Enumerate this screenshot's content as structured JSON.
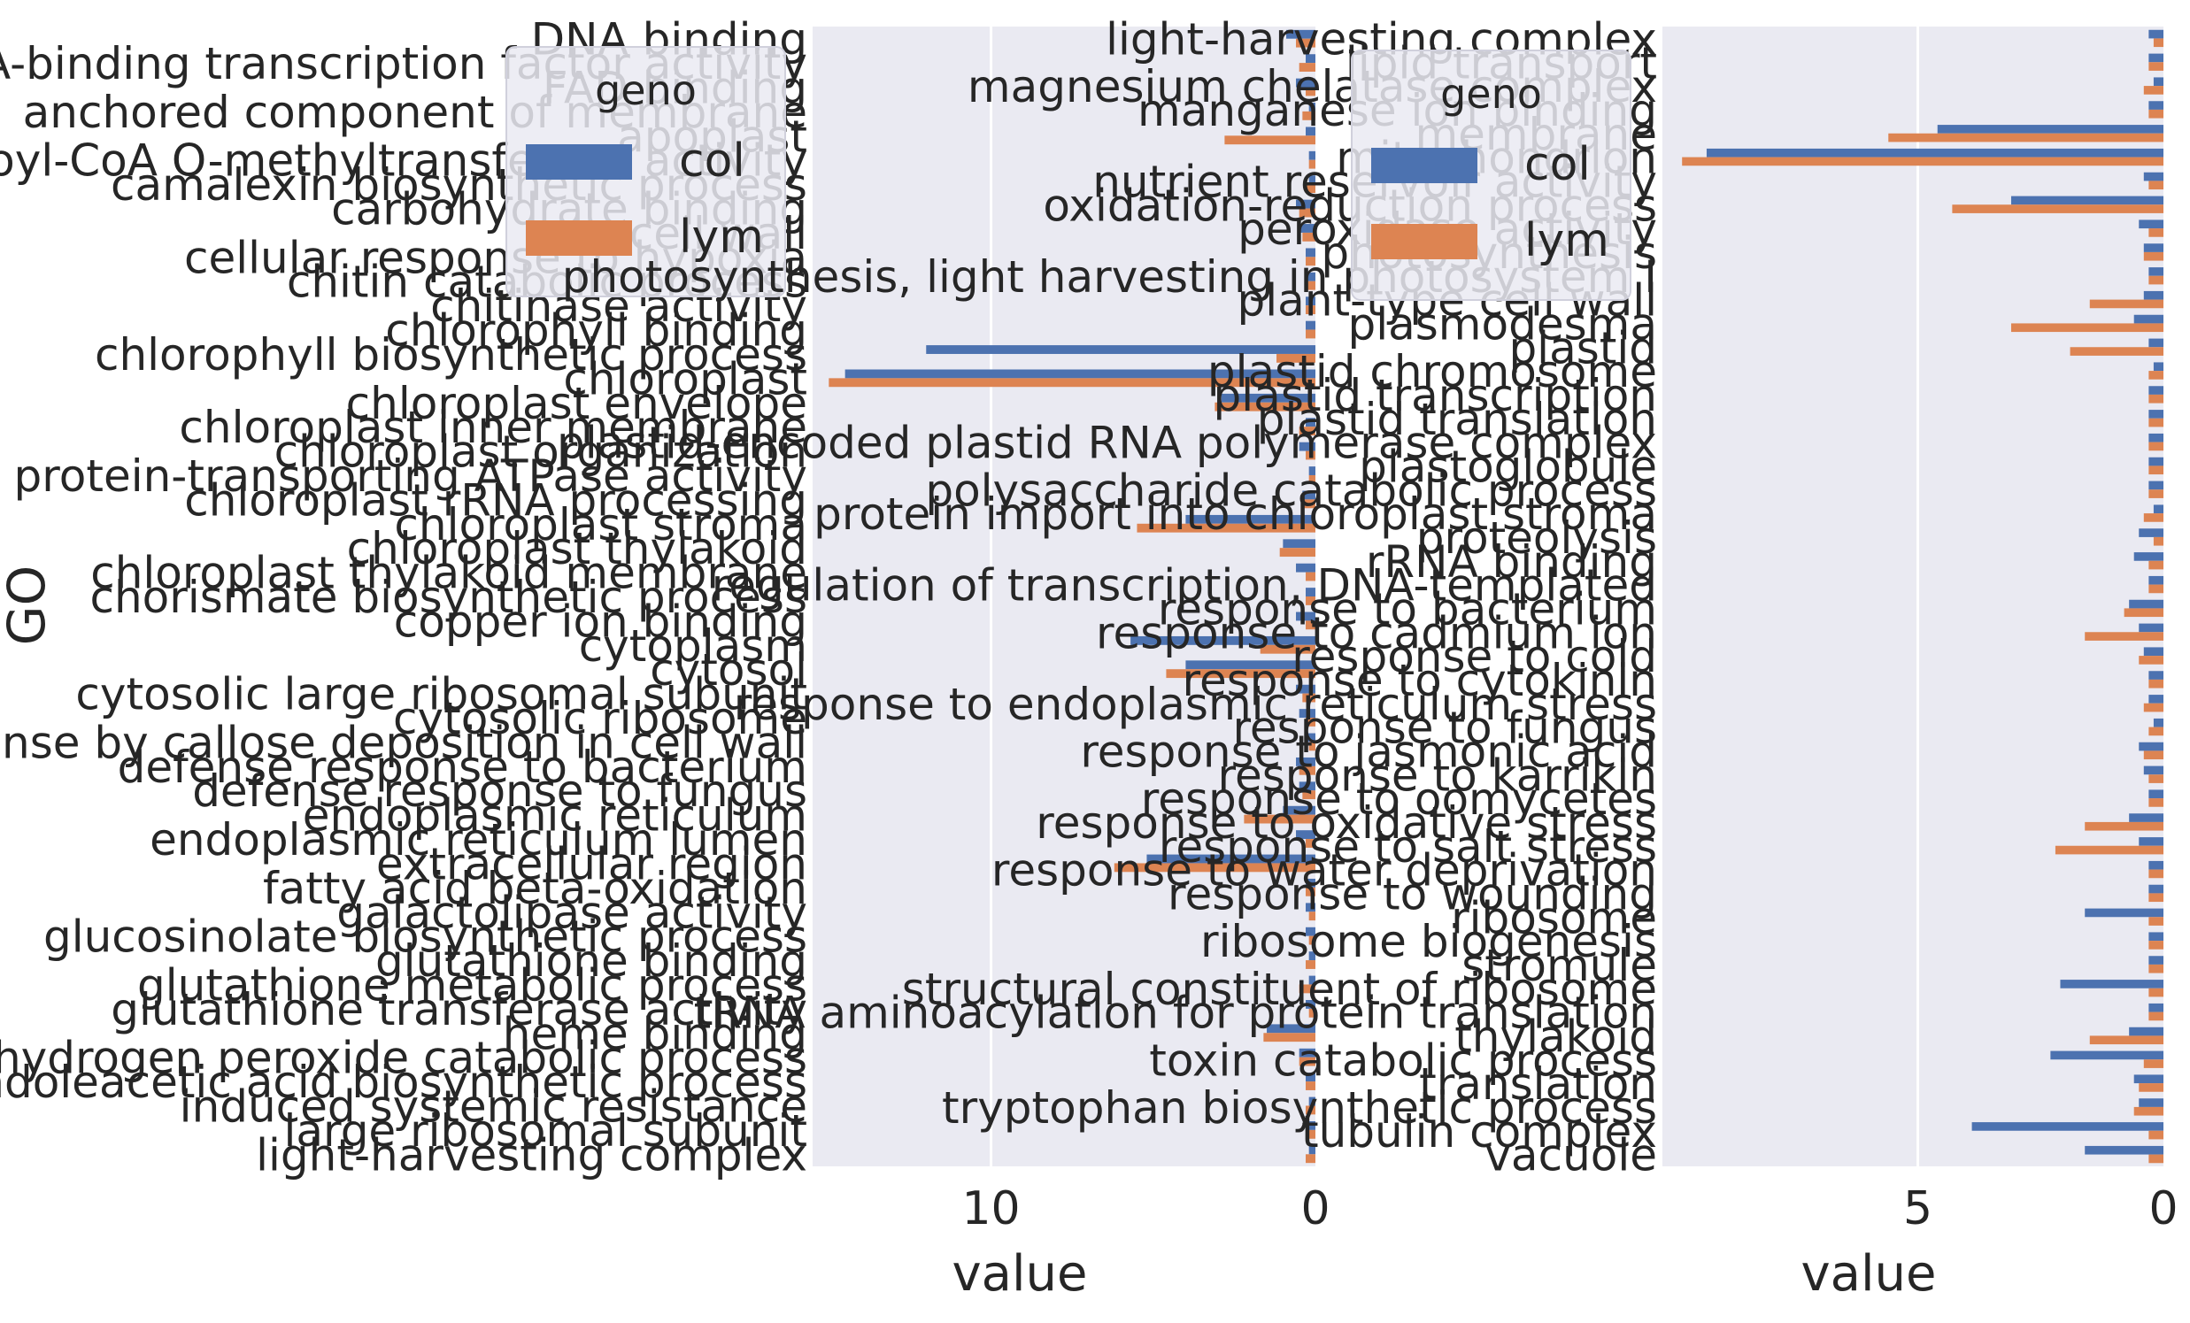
{
  "colors": {
    "background": "#eaeaf2",
    "grid": "#ffffff",
    "col": "#4c72b0",
    "lym": "#dd8452",
    "text": "#262626"
  },
  "chart_data": [
    {
      "type": "bar",
      "orientation": "horizontal",
      "x_axis_inverted": true,
      "ylabel": "GO",
      "xlabel": "value",
      "xlim": [
        15.5,
        0
      ],
      "xticks": [
        "10",
        "0"
      ],
      "legend": {
        "title": "geno",
        "position": "upper-left",
        "entries": [
          "col",
          "lym"
        ]
      },
      "categories": [
        "DNA binding",
        "DNA-binding transcription factor activity",
        "FAD binding",
        "anchored component of membrane",
        "apoplast",
        "caffeoyl-CoA O-methyltransferase activity",
        "camalexin biosynthetic process",
        "carbohydrate binding",
        "cell wall",
        "cellular response to hypoxia",
        "chitin catabolic process",
        "chitinase activity",
        "chlorophyll binding",
        "chlorophyll biosynthetic process",
        "chloroplast",
        "chloroplast envelope",
        "chloroplast inner membrane",
        "chloroplast organization",
        "chloroplast protein-transporting ATPase activity",
        "chloroplast rRNA processing",
        "chloroplast stroma",
        "chloroplast thylakoid",
        "chloroplast thylakoid membrane",
        "chorismate biosynthetic process",
        "copper ion binding",
        "cytoplasm",
        "cytosol",
        "cytosolic large ribosomal subunit",
        "cytosolic ribosome",
        "defense response by callose deposition in cell wall",
        "defense response to bacterium",
        "defense response to fungus",
        "endoplasmic reticulum",
        "endoplasmic reticulum lumen",
        "extracellular region",
        "fatty acid beta-oxidation",
        "galactolipase activity",
        "glucosinolate biosynthetic process",
        "glutathione binding",
        "glutathione metabolic process",
        "glutathione transferase activity",
        "heme binding",
        "hydrogen peroxide catabolic process",
        "indoleacetic acid biosynthetic process",
        "induced systemic resistance",
        "large ribosomal subunit",
        "light-harvesting complex"
      ],
      "series": [
        {
          "name": "col",
          "values": [
            0.9,
            0.3,
            0.6,
            0.2,
            0.3,
            0.2,
            0.2,
            0.6,
            0.5,
            0.3,
            0.3,
            0.3,
            0.3,
            12.0,
            14.5,
            2.9,
            0.3,
            0.5,
            0.2,
            0.4,
            4.0,
            1.0,
            0.6,
            0.3,
            0.6,
            5.7,
            4.0,
            0.6,
            0.5,
            0.3,
            0.6,
            0.5,
            1.0,
            0.6,
            5.2,
            0.3,
            0.3,
            0.3,
            0.2,
            0.2,
            0.3,
            1.5,
            0.5,
            0.3,
            0.2,
            0.3,
            0.2
          ]
        },
        {
          "name": "lym",
          "values": [
            0.6,
            0.5,
            0.3,
            0.4,
            2.8,
            0.2,
            0.3,
            0.5,
            0.4,
            0.3,
            0.3,
            0.3,
            0.3,
            1.2,
            15.0,
            3.1,
            0.5,
            0.3,
            0.2,
            0.4,
            5.5,
            1.1,
            0.3,
            0.3,
            0.3,
            1.7,
            4.6,
            0.4,
            0.3,
            0.2,
            0.5,
            0.4,
            2.2,
            0.3,
            6.2,
            0.3,
            0.2,
            0.2,
            0.3,
            0.5,
            0.2,
            1.6,
            0.5,
            0.3,
            0.3,
            0.2,
            0.3
          ]
        }
      ]
    },
    {
      "type": "bar",
      "orientation": "horizontal",
      "x_axis_inverted": true,
      "ylabel": "",
      "xlabel": "value",
      "xlim": [
        10.2,
        0
      ],
      "xticks": [
        "5",
        "0"
      ],
      "legend": {
        "title": "geno",
        "position": "upper-left",
        "entries": [
          "col",
          "lym"
        ]
      },
      "categories": [
        "light-harvesting complex",
        "lipid transport",
        "magnesium chelatase complex",
        "manganese ion binding",
        "membrane",
        "mitochondrion",
        "nutrient reservoir activity",
        "oxidation-reduction process",
        "peroxidase activity",
        "photosynthesis",
        "photosynthesis, light harvesting in photosystem I",
        "plant-type cell wall",
        "plasmodesma",
        "plastid",
        "plastid chromosome",
        "plastid transcription",
        "plastid translation",
        "plastid-encoded plastid RNA polymerase complex",
        "plastoglobule",
        "polysaccharide catabolic process",
        "protein import into chloroplast stroma",
        "proteolysis",
        "rRNA binding",
        "regulation of transcription, DNA-templated",
        "response to bacterium",
        "response to cadmium ion",
        "response to cold",
        "response to cytokinin",
        "response to endoplasmic reticulum stress",
        "response to fungus",
        "response to jasmonic acid",
        "response to karrikin",
        "response to oomycetes",
        "response to oxidative stress",
        "response to salt stress",
        "response to water deprivation",
        "response to wounding",
        "ribosome",
        "ribosome biogenesis",
        "stromule",
        "structural constituent of ribosome",
        "tRNA aminoacylation for protein translation",
        "thylakoid",
        "toxin catabolic process",
        "translation",
        "tryptophan biosynthetic process",
        "tubulin complex",
        "vacuole"
      ],
      "series": [
        {
          "name": "col",
          "values": [
            0.3,
            0.3,
            0.2,
            0.3,
            4.6,
            9.3,
            0.4,
            3.1,
            0.5,
            0.4,
            0.3,
            0.4,
            0.6,
            0.3,
            0.2,
            0.3,
            0.3,
            0.3,
            0.3,
            0.3,
            0.2,
            0.5,
            0.6,
            0.3,
            0.7,
            0.5,
            0.4,
            0.3,
            0.3,
            0.2,
            0.5,
            0.4,
            0.3,
            0.7,
            0.5,
            0.3,
            0.3,
            1.6,
            0.3,
            0.3,
            2.1,
            0.3,
            0.7,
            2.3,
            0.6,
            0.5,
            3.9,
            1.6
          ]
        },
        {
          "name": "lym",
          "values": [
            0.2,
            0.3,
            0.4,
            0.3,
            5.6,
            9.8,
            0.3,
            4.3,
            0.3,
            0.4,
            0.3,
            1.5,
            3.1,
            1.9,
            0.3,
            0.3,
            0.3,
            0.3,
            0.3,
            0.3,
            0.4,
            0.2,
            0.3,
            0.3,
            0.8,
            1.6,
            0.5,
            0.3,
            0.4,
            0.3,
            0.4,
            0.3,
            0.3,
            1.6,
            2.2,
            0.3,
            0.3,
            0.3,
            0.3,
            0.3,
            0.3,
            0.3,
            1.5,
            0.4,
            0.5,
            0.6,
            0.3,
            0.3
          ]
        }
      ]
    }
  ]
}
